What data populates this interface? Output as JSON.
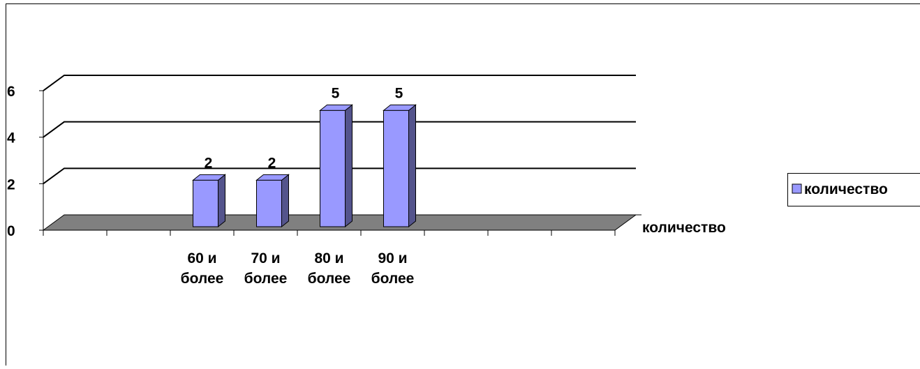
{
  "chart_data": {
    "type": "bar3d",
    "categories": [
      null,
      null,
      "60 и более",
      "70 и более",
      "80 и более",
      "90 и более",
      null,
      null,
      null
    ],
    "series": [
      {
        "name": "количество",
        "color": "#9999ff",
        "values": [
          null,
          null,
          2,
          2,
          5,
          5,
          null,
          null,
          null
        ]
      }
    ],
    "ylim": [
      0,
      6
    ],
    "yticks": [
      0,
      2,
      4,
      6
    ],
    "grid": true,
    "legend": "right"
  }
}
